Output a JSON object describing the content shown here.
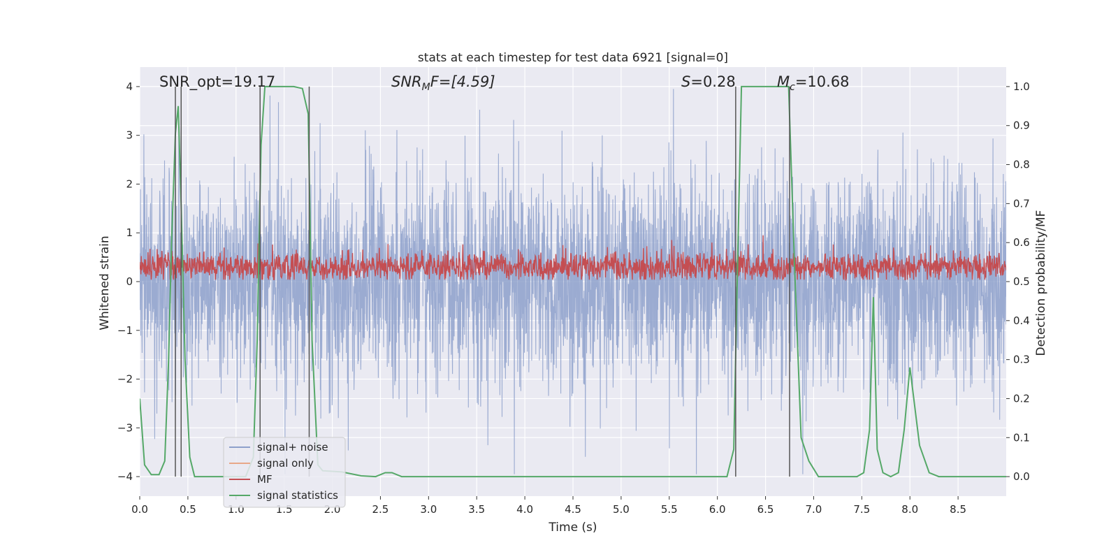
{
  "chart_data": {
    "type": "line",
    "title": "stats at each timestep for test data 6921 [signal=0]",
    "xlabel": "Time (s)",
    "ylabel": "Whitened strain",
    "y2label": "Detection probability/MF",
    "xlim": [
      0.0,
      9.0
    ],
    "ylim": [
      -4.4,
      4.4
    ],
    "y2lim": [
      -0.05,
      1.05
    ],
    "xticks": [
      0.0,
      0.5,
      1.0,
      1.5,
      2.0,
      2.5,
      3.0,
      3.5,
      4.0,
      4.5,
      5.0,
      5.5,
      6.0,
      6.5,
      7.0,
      7.5,
      8.0,
      8.5
    ],
    "xtick_labels": [
      "0.0",
      "0.5",
      "1.0",
      "1.5",
      "2.0",
      "2.5",
      "3.0",
      "3.5",
      "4.0",
      "4.5",
      "5.0",
      "5.5",
      "6.0",
      "6.5",
      "7.0",
      "7.5",
      "8.0",
      "8.5"
    ],
    "yticks": [
      -4,
      -3,
      -2,
      -1,
      0,
      1,
      2,
      3,
      4
    ],
    "ytick_labels": [
      "−4",
      "−3",
      "−2",
      "−1",
      "0",
      "1",
      "2",
      "3",
      "4"
    ],
    "y2ticks": [
      0.0,
      0.1,
      0.2,
      0.3,
      0.4,
      0.5,
      0.6,
      0.7,
      0.8,
      0.9,
      1.0
    ],
    "y2tick_labels": [
      "0.0",
      "0.1",
      "0.2",
      "0.3",
      "0.4",
      "0.5",
      "0.6",
      "0.7",
      "0.8",
      "0.9",
      "1.0"
    ],
    "grid": true,
    "legend_position": "bottom-left",
    "annotations": [
      {
        "id": "snr-opt",
        "text": "SNR_opt=19.17",
        "x": 0.2,
        "y": 4.0
      },
      {
        "id": "snr-mf",
        "text": "SNRₘF=[4.59]",
        "x": 2.6,
        "y": 4.0
      },
      {
        "id": "s-value",
        "text": "S=0.28",
        "x": 5.6,
        "y": 4.0
      },
      {
        "id": "mc-value",
        "text": "Mc=10.68",
        "x": 6.6,
        "y": 4.0
      }
    ],
    "annotation_parts": {
      "snr_mf_main": "SNR",
      "snr_mf_sub": "M",
      "snr_mf_rest": "F=[4.59]",
      "mc_main": "M",
      "mc_sub": "c",
      "mc_rest": "=10.68",
      "s_main": "S",
      "s_rest": "=0.28"
    },
    "vlines": [
      0.37,
      0.43,
      1.25,
      1.76,
      6.19,
      6.75
    ],
    "series": [
      {
        "name": "signal+ noise",
        "color": "#8da0cb",
        "axis": "left",
        "style": "dense noise, amplitude approx ±1.6 typical, peaks to ±3.9",
        "seed": 6921
      },
      {
        "name": "signal only",
        "color": "#e8a788",
        "axis": "left",
        "values": []
      },
      {
        "name": "MF",
        "color": "#c44e52",
        "axis": "left",
        "style": "noise band 0.05 to 0.7, peaks near 0.95",
        "seed": 17
      },
      {
        "name": "signal statistics",
        "color": "#55a868",
        "axis": "right",
        "x": [
          0.0,
          0.05,
          0.12,
          0.2,
          0.26,
          0.3,
          0.33,
          0.37,
          0.4,
          0.43,
          0.47,
          0.52,
          0.57,
          1.1,
          1.18,
          1.22,
          1.26,
          1.3,
          1.35,
          1.4,
          1.6,
          1.69,
          1.75,
          1.79,
          1.85,
          1.9,
          2.1,
          2.3,
          2.45,
          2.55,
          2.62,
          2.72,
          3.0,
          6.1,
          6.17,
          6.21,
          6.25,
          6.3,
          6.5,
          6.74,
          6.8,
          6.87,
          6.95,
          7.05,
          7.45,
          7.52,
          7.58,
          7.62,
          7.66,
          7.72,
          7.8,
          7.88,
          7.94,
          8.0,
          8.05,
          8.1,
          8.2,
          8.3,
          8.4,
          9.0
        ],
        "values": [
          0.2,
          0.03,
          0.005,
          0.005,
          0.04,
          0.3,
          0.6,
          0.88,
          0.95,
          0.7,
          0.3,
          0.05,
          0.0,
          0.0,
          0.05,
          0.35,
          0.85,
          1.0,
          1.0,
          1.0,
          1.0,
          0.995,
          0.93,
          0.35,
          0.03,
          0.015,
          0.012,
          0.002,
          0.0,
          0.01,
          0.01,
          0.0,
          0.0,
          0.0,
          0.07,
          0.55,
          1.0,
          1.0,
          1.0,
          1.0,
          0.55,
          0.1,
          0.04,
          0.0,
          0.0,
          0.01,
          0.12,
          0.46,
          0.07,
          0.01,
          0.0,
          0.01,
          0.12,
          0.28,
          0.18,
          0.08,
          0.01,
          0.0,
          0.0,
          0.0
        ]
      }
    ]
  }
}
